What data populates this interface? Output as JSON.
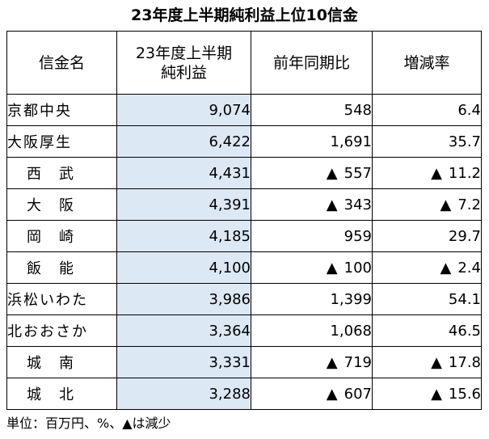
{
  "title": "23年度上半期純利益上位10信金",
  "headers": {
    "name": "信金名",
    "profit_line1": "23年度上半期",
    "profit_line2": "純利益",
    "yoy": "前年同期比",
    "rate": "増減率"
  },
  "decrease_mark": "▲",
  "rows": [
    {
      "name": "京都中央",
      "profit": "9,074",
      "yoy": "548",
      "yoy_decrease": false,
      "rate": "6.4",
      "rate_decrease": false
    },
    {
      "name": "大阪厚生",
      "profit": "6,422",
      "yoy": "1,691",
      "yoy_decrease": false,
      "rate": "35.7",
      "rate_decrease": false
    },
    {
      "name": "西武",
      "profit": "4,431",
      "yoy": "557",
      "yoy_decrease": true,
      "rate": "11.2",
      "rate_decrease": true
    },
    {
      "name": "大阪",
      "profit": "4,391",
      "yoy": "343",
      "yoy_decrease": true,
      "rate": "7.2",
      "rate_decrease": true
    },
    {
      "name": "岡崎",
      "profit": "4,185",
      "yoy": "959",
      "yoy_decrease": false,
      "rate": "29.7",
      "rate_decrease": false
    },
    {
      "name": "飯能",
      "profit": "4,100",
      "yoy": "100",
      "yoy_decrease": true,
      "rate": "2.4",
      "rate_decrease": true
    },
    {
      "name": "浜松いわた",
      "profit": "3,986",
      "yoy": "1,399",
      "yoy_decrease": false,
      "rate": "54.1",
      "rate_decrease": false
    },
    {
      "name": "北おおさか",
      "profit": "3,364",
      "yoy": "1,068",
      "yoy_decrease": false,
      "rate": "46.5",
      "rate_decrease": false
    },
    {
      "name": "城南",
      "profit": "3,331",
      "yoy": "719",
      "yoy_decrease": true,
      "rate": "17.8",
      "rate_decrease": true
    },
    {
      "name": "城北",
      "profit": "3,288",
      "yoy": "607",
      "yoy_decrease": true,
      "rate": "15.6",
      "rate_decrease": true
    }
  ],
  "footnote": "単位：百万円、%、▲は減少",
  "colors": {
    "profit_column_fill": "#dce8f4",
    "border": "#000000"
  }
}
